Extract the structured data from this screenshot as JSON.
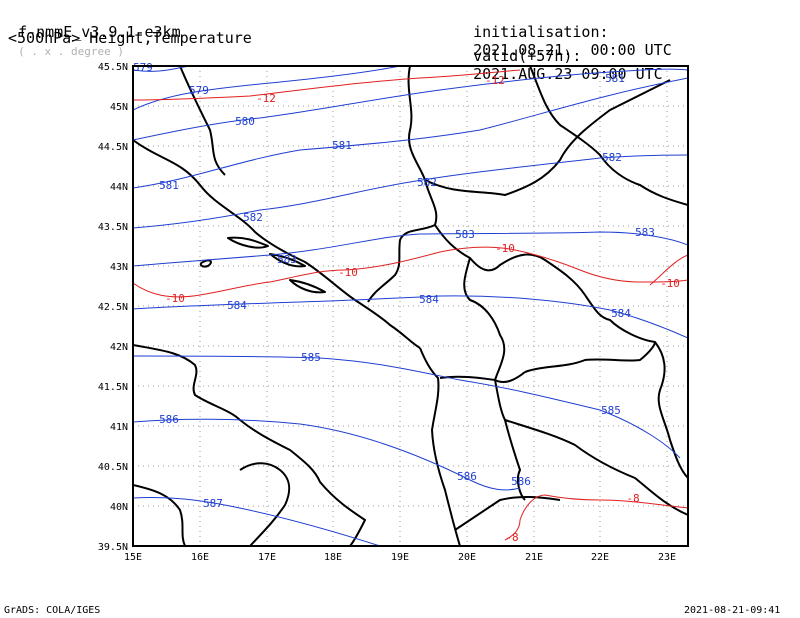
{
  "header": {
    "model": "f-nmmE_v3.9.1-e3km",
    "grid_note": "( . x . degree )",
    "field": "<500hPa> Height,Temperature",
    "init_label": "initialisation:",
    "init_value": "2021.08.21.  00:00 UTC",
    "valid_label": "valid(+57h):",
    "valid_value": "2021.AUG.23 09:00 UTC"
  },
  "axes": {
    "lat_labels": [
      "45.5N",
      "45N",
      "44.5N",
      "44N",
      "43.5N",
      "43N",
      "42.5N",
      "42N",
      "41.5N",
      "41N",
      "40.5N",
      "40N",
      "39.5N"
    ],
    "lon_labels": [
      "15E",
      "16E",
      "17E",
      "18E",
      "19E",
      "20E",
      "21E",
      "22E",
      "23E"
    ]
  },
  "height_labels": [
    "579",
    "579",
    "580",
    "581",
    "581",
    "581",
    "582",
    "582",
    "582",
    "583",
    "583",
    "583",
    "584",
    "584",
    "584",
    "585",
    "585",
    "586",
    "586",
    "586",
    "587"
  ],
  "temp_labels": [
    "-12",
    "-12",
    "-10",
    "-10",
    "-10",
    "-10",
    "-8",
    "-8"
  ],
  "colors": {
    "height": "#1f3fd0",
    "temperature": "#e02020",
    "coast": "#000000",
    "grid": "#9a9a9a"
  },
  "footer": {
    "left": "GrADS: COLA/IGES",
    "right": "2021-08-21-09:41"
  }
}
